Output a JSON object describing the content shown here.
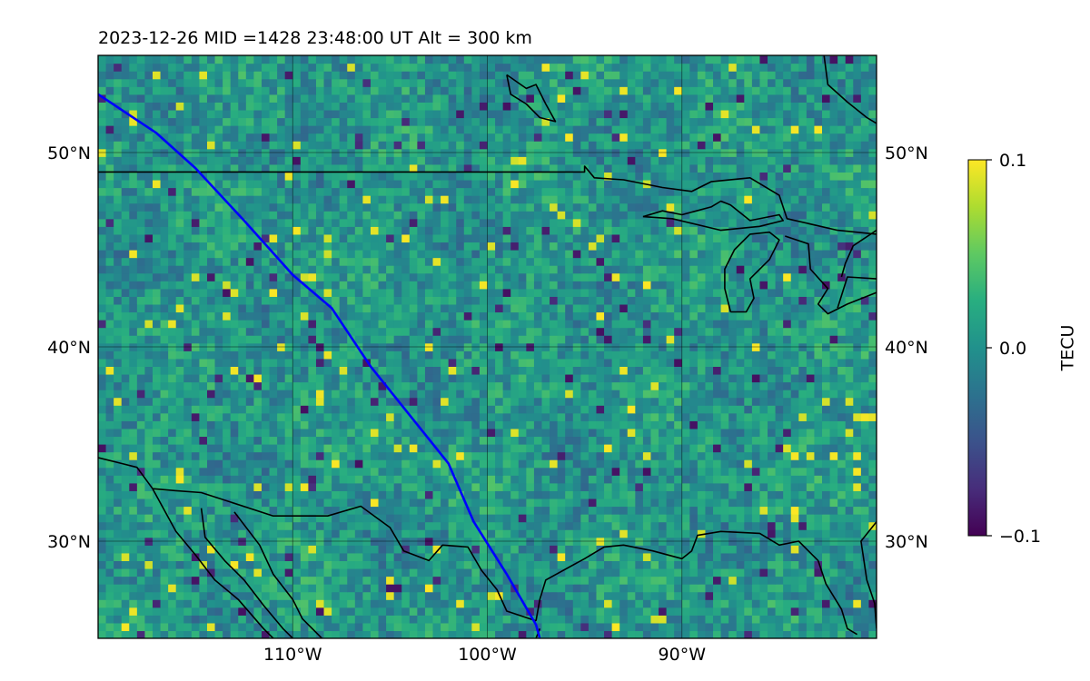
{
  "title": "2023-12-26  MID =1428    23:48:00  UT  Alt = 300 km",
  "map": {
    "lon_range": [
      -120,
      -80
    ],
    "lat_range": [
      25,
      55
    ],
    "projection": "PlateCarree",
    "grid": true,
    "lat_ticks": [
      {
        "value": 30,
        "label": "30°N"
      },
      {
        "value": 40,
        "label": "40°N"
      },
      {
        "value": 50,
        "label": "50°N"
      }
    ],
    "lon_ticks": [
      {
        "value": -110,
        "label": "110°W"
      },
      {
        "value": -100,
        "label": "100°W"
      },
      {
        "value": -90,
        "label": "90°W"
      }
    ],
    "field": "TEC perturbation heatmap, viridis colormap"
  },
  "colorbar": {
    "label": "TECU",
    "colormap": "viridis",
    "range": [
      -0.1,
      0.1
    ],
    "ticks": [
      {
        "value": 0.1,
        "label": "0.1"
      },
      {
        "value": 0.0,
        "label": "0.0"
      },
      {
        "value": -0.1,
        "label": "−0.1"
      }
    ]
  },
  "track": {
    "color": "#0000ff",
    "points": [
      [
        -120,
        53
      ],
      [
        -117,
        51
      ],
      [
        -115,
        49.2
      ],
      [
        -112.5,
        46.5
      ],
      [
        -110,
        43.7
      ],
      [
        -108,
        42
      ],
      [
        -106,
        39
      ],
      [
        -104,
        36.5
      ],
      [
        -102,
        34
      ],
      [
        -100.7,
        31
      ],
      [
        -99,
        28.3
      ],
      [
        -97.5,
        25.7
      ],
      [
        -97.3,
        25
      ]
    ]
  },
  "coastlines": {
    "color": "#000000",
    "lines": [
      [
        [
          -120,
          49
        ],
        [
          -95,
          49
        ],
        [
          -95,
          49.3
        ],
        [
          -94.5,
          48.7
        ],
        [
          -93,
          48.6
        ],
        [
          -91,
          48.2
        ],
        [
          -89.5,
          48
        ],
        [
          -88.5,
          48.5
        ],
        [
          -86.5,
          48.7
        ],
        [
          -85,
          47.8
        ],
        [
          -84.6,
          46.6
        ],
        [
          -82,
          46
        ],
        [
          -80,
          45.8
        ]
      ],
      [
        [
          -92,
          46.7
        ],
        [
          -91,
          47
        ],
        [
          -90,
          46.8
        ],
        [
          -88.5,
          47.2
        ],
        [
          -88,
          47.5
        ],
        [
          -87.5,
          47.3
        ],
        [
          -86.5,
          46.5
        ],
        [
          -85,
          46.8
        ],
        [
          -84.8,
          46.5
        ],
        [
          -86,
          46.2
        ],
        [
          -88,
          46
        ],
        [
          -90.5,
          46.6
        ],
        [
          -92,
          46.7
        ]
      ],
      [
        [
          -87.5,
          41.8
        ],
        [
          -87.8,
          43
        ],
        [
          -87.8,
          44
        ],
        [
          -87.3,
          45
        ],
        [
          -86.5,
          45.8
        ],
        [
          -85.5,
          45.9
        ],
        [
          -85,
          45.5
        ],
        [
          -85.5,
          44.5
        ],
        [
          -86.5,
          43.5
        ],
        [
          -86.3,
          42.5
        ],
        [
          -86.7,
          41.8
        ],
        [
          -87.5,
          41.8
        ]
      ],
      [
        [
          -84.7,
          45.7
        ],
        [
          -83.5,
          45.3
        ],
        [
          -83.4,
          44
        ],
        [
          -82.5,
          43
        ],
        [
          -83,
          42.2
        ],
        [
          -82.5,
          41.7
        ],
        [
          -81.5,
          42.2
        ],
        [
          -80,
          42.8
        ]
      ],
      [
        [
          -80,
          43.5
        ],
        [
          -81.5,
          43.6
        ],
        [
          -82,
          42
        ]
      ],
      [
        [
          -80,
          46
        ],
        [
          -81.2,
          45.2
        ],
        [
          -81.6,
          44.3
        ],
        [
          -81.8,
          43.6
        ]
      ],
      [
        [
          -120,
          34.3
        ],
        [
          -118.8,
          34
        ],
        [
          -118,
          33.8
        ],
        [
          -117.2,
          32.7
        ],
        [
          -116,
          32.6
        ],
        [
          -114.7,
          32.5
        ],
        [
          -111,
          31.3
        ],
        [
          -108.2,
          31.3
        ],
        [
          -106.5,
          31.8
        ],
        [
          -105,
          30.7
        ],
        [
          -104.3,
          29.5
        ],
        [
          -103,
          29
        ],
        [
          -102.3,
          29.8
        ],
        [
          -101,
          29.7
        ],
        [
          -100.3,
          28.5
        ],
        [
          -99.5,
          27.5
        ],
        [
          -99,
          26.4
        ],
        [
          -97.5,
          25.9
        ]
      ],
      [
        [
          -117.2,
          32.7
        ],
        [
          -116,
          30.5
        ],
        [
          -115,
          29.3
        ],
        [
          -114,
          28
        ],
        [
          -112.8,
          27
        ],
        [
          -111.5,
          25.5
        ],
        [
          -111,
          25
        ]
      ],
      [
        [
          -114.7,
          31.7
        ],
        [
          -114.5,
          30.2
        ],
        [
          -113.5,
          29
        ],
        [
          -112.5,
          28
        ],
        [
          -111.5,
          26.7
        ],
        [
          -110.5,
          25.5
        ],
        [
          -110,
          25
        ]
      ],
      [
        [
          -113,
          31.5
        ],
        [
          -111.7,
          29.8
        ],
        [
          -111,
          28.3
        ],
        [
          -110,
          27
        ],
        [
          -109.5,
          26
        ],
        [
          -108.5,
          25
        ]
      ],
      [
        [
          -97.5,
          25.9
        ],
        [
          -97.3,
          27
        ],
        [
          -97,
          28
        ],
        [
          -95,
          29.1
        ],
        [
          -94,
          29.7
        ],
        [
          -93,
          29.8
        ],
        [
          -91.5,
          29.5
        ],
        [
          -90,
          29.1
        ],
        [
          -89.5,
          29.5
        ],
        [
          -89.2,
          30.3
        ],
        [
          -88,
          30.5
        ],
        [
          -86,
          30.4
        ],
        [
          -85,
          29.8
        ],
        [
          -84,
          30
        ],
        [
          -83,
          29
        ],
        [
          -82.6,
          27.8
        ],
        [
          -81.8,
          26.5
        ],
        [
          -81.5,
          25.5
        ],
        [
          -81,
          25.2
        ]
      ],
      [
        [
          -80,
          31
        ],
        [
          -80.8,
          30
        ],
        [
          -80.5,
          28
        ],
        [
          -80.1,
          26.8
        ],
        [
          -80,
          25.5
        ]
      ],
      [
        [
          -99,
          54
        ],
        [
          -98,
          53.3
        ],
        [
          -97.5,
          53.5
        ],
        [
          -97,
          52.5
        ],
        [
          -96.5,
          51.6
        ],
        [
          -97.3,
          51.8
        ],
        [
          -98,
          52.5
        ],
        [
          -98.8,
          53
        ],
        [
          -99,
          54
        ]
      ],
      [
        [
          -82.7,
          55
        ],
        [
          -82.5,
          53.5
        ],
        [
          -81.5,
          52.6
        ],
        [
          -80.5,
          51.8
        ],
        [
          -80,
          51.5
        ]
      ],
      [
        [
          -97.5,
          25
        ],
        [
          -97.3,
          25.5
        ]
      ]
    ]
  }
}
